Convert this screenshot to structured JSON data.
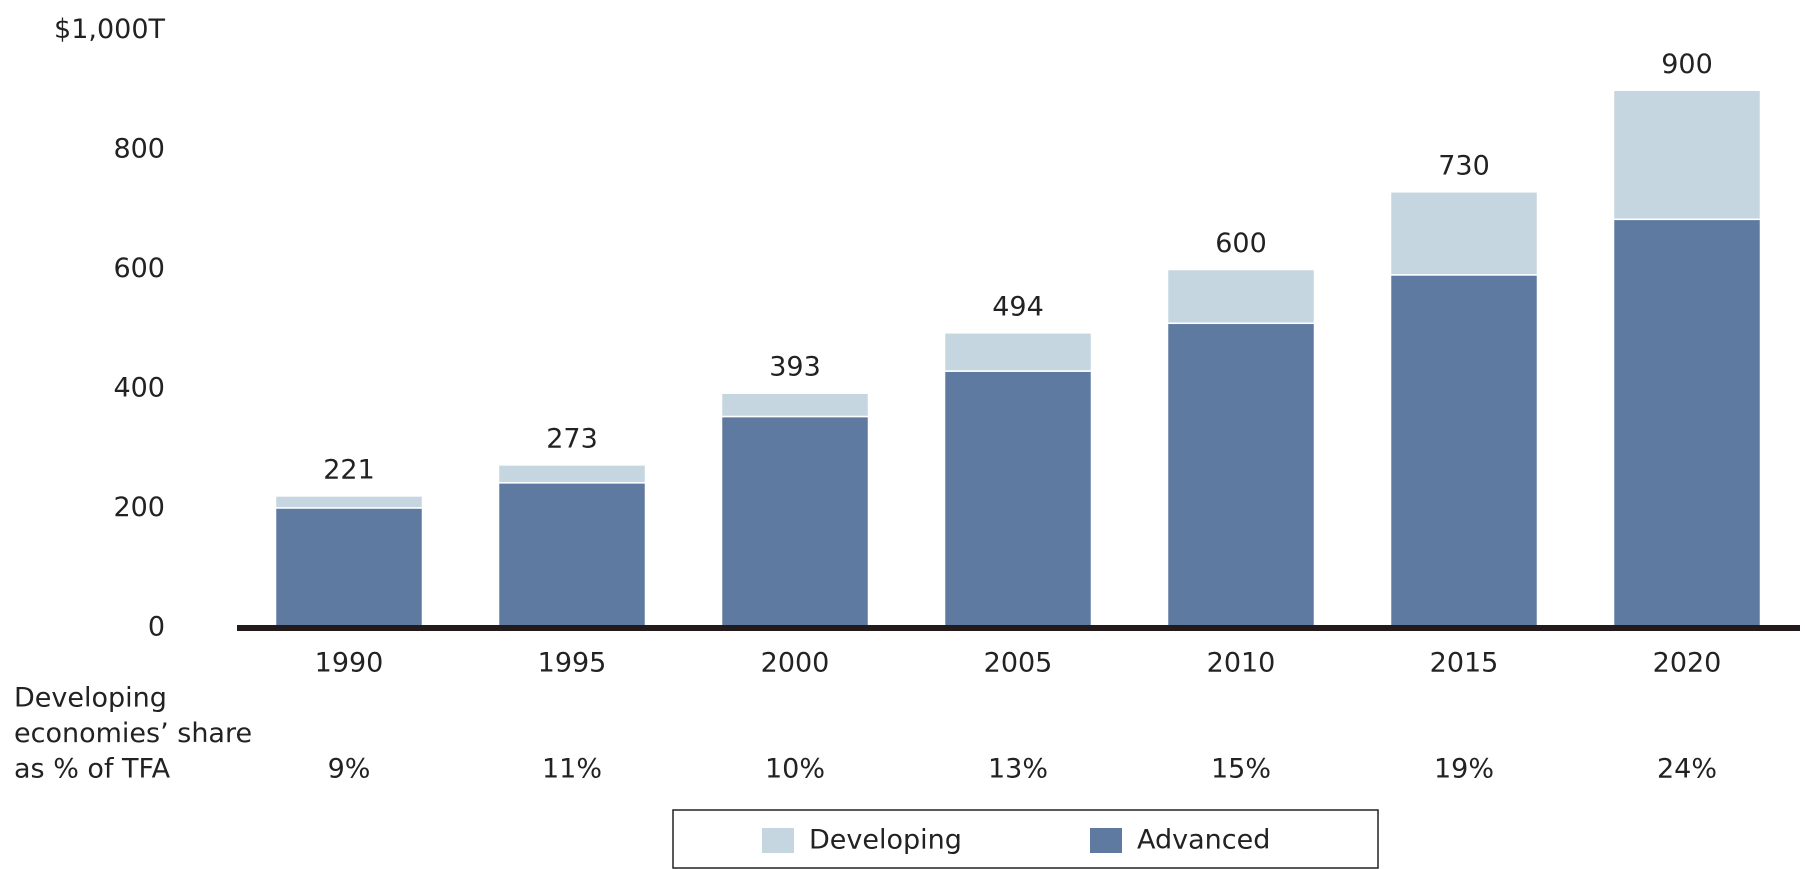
{
  "chart_data": {
    "type": "stacked_bar",
    "categories": [
      "1990",
      "1995",
      "2000",
      "2005",
      "2010",
      "2015",
      "2020"
    ],
    "series": [
      {
        "name": "Advanced",
        "color": "#5f7aa1",
        "values": [
          201,
          243,
          354,
          430,
          510,
          591,
          684
        ]
      },
      {
        "name": "Developing",
        "color": "#c5d6e1",
        "values": [
          20,
          30,
          39,
          64,
          90,
          139,
          216
        ]
      }
    ],
    "totals": [
      221,
      273,
      393,
      494,
      600,
      730,
      900
    ],
    "share_title": [
      "Developing",
      "economies’ share",
      "as % of TFA"
    ],
    "share_labels": [
      "9%",
      "11%",
      "10%",
      "13%",
      "15%",
      "19%",
      "24%"
    ],
    "ylim": [
      0,
      1000
    ],
    "yticks": [
      0,
      200,
      400,
      600,
      800,
      {
        "value": 1000,
        "label": "$1,000T"
      }
    ],
    "legend": "bottom"
  }
}
